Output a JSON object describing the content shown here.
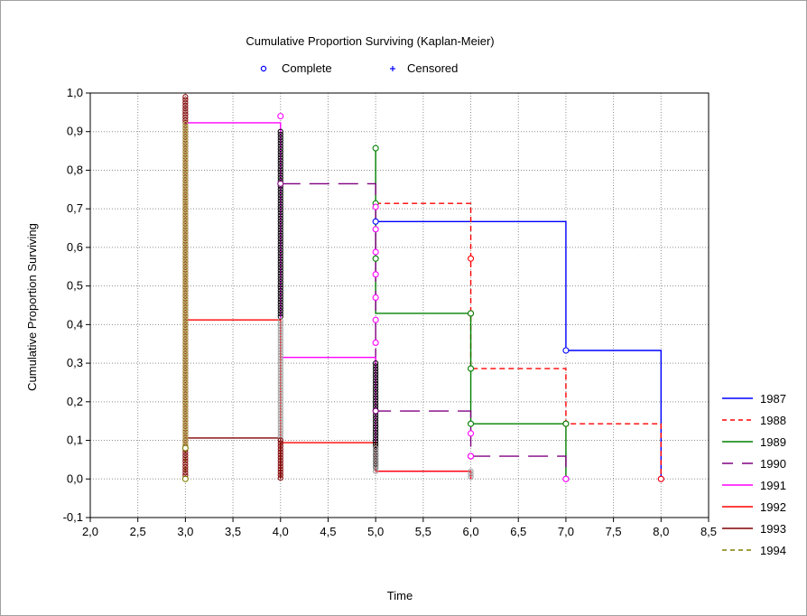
{
  "chart_data": {
    "type": "line",
    "title": "Cumulative Proportion Surviving (Kaplan-Meier)",
    "xlabel": "Time",
    "ylabel": "Cumulative Proportion Surviving",
    "xlim": [
      2.0,
      8.5
    ],
    "ylim": [
      -0.1,
      1.0
    ],
    "xticks": [
      "2,0",
      "2,5",
      "3,0",
      "3,5",
      "4,0",
      "4,5",
      "5,0",
      "5,5",
      "6,0",
      "6,5",
      "7,0",
      "7,5",
      "8,0",
      "8,5"
    ],
    "yticks": [
      "-0,1",
      "0,0",
      "0,1",
      "0,2",
      "0,3",
      "0,4",
      "0,5",
      "0,6",
      "0,7",
      "0,8",
      "0,9",
      "1,0"
    ],
    "grid": true,
    "legend_position": "right",
    "marker_legend": [
      {
        "label": "Complete",
        "symbol": "o",
        "color": "#0000ff"
      },
      {
        "label": "Censored",
        "symbol": "+",
        "color": "#0000ff"
      }
    ],
    "series": [
      {
        "name": "1987",
        "color": "#0000ff",
        "dash": "solid",
        "steps": [
          [
            5.0,
            0.667
          ],
          [
            7.0,
            0.333
          ],
          [
            8.0,
            0.0
          ]
        ],
        "points": [
          [
            5.0,
            0.667
          ],
          [
            7.0,
            0.333
          ],
          [
            8.0,
            0.0
          ]
        ]
      },
      {
        "name": "1988",
        "color": "#ff0000",
        "dash": "short",
        "steps": [
          [
            5.0,
            0.714
          ],
          [
            6.0,
            0.286
          ],
          [
            7.0,
            0.143
          ],
          [
            8.0,
            0.0
          ]
        ],
        "points": [
          [
            6.0,
            0.571
          ],
          [
            6.0,
            0.429
          ],
          [
            7.0,
            0.143
          ],
          [
            8.0,
            0.0
          ]
        ]
      },
      {
        "name": "1989",
        "color": "#008000",
        "dash": "solid",
        "steps": [
          [
            5.0,
            0.857
          ],
          [
            5.0,
            0.429
          ],
          [
            6.0,
            0.143
          ],
          [
            7.0,
            0.0
          ]
        ],
        "points": [
          [
            5.0,
            0.857
          ],
          [
            5.0,
            0.714
          ],
          [
            5.0,
            0.571
          ],
          [
            6.0,
            0.429
          ],
          [
            6.0,
            0.286
          ],
          [
            6.0,
            0.143
          ],
          [
            7.0,
            0.143
          ]
        ]
      },
      {
        "name": "1990",
        "color": "#800080",
        "dash": "long",
        "steps": [
          [
            4.0,
            0.765
          ],
          [
            5.0,
            0.176
          ],
          [
            6.0,
            0.059
          ],
          [
            7.0,
            0.0
          ]
        ],
        "points": [
          [
            4.0,
            0.765
          ],
          [
            5.0,
            0.176
          ],
          [
            6.0,
            0.059
          ],
          [
            7.0,
            0.0
          ]
        ]
      },
      {
        "name": "1991",
        "color": "#ff00ff",
        "dash": "solid",
        "steps": [
          [
            3.0,
            0.923
          ],
          [
            4.0,
            0.315
          ],
          [
            5.0,
            0.02
          ],
          [
            6.0,
            0.0
          ]
        ],
        "points": [
          [
            4.0,
            0.94
          ],
          [
            5.0,
            0.705
          ],
          [
            5.0,
            0.647
          ],
          [
            5.0,
            0.588
          ],
          [
            5.0,
            0.53
          ],
          [
            5.0,
            0.47
          ],
          [
            5.0,
            0.412
          ],
          [
            5.0,
            0.353
          ],
          [
            6.0,
            0.118
          ],
          [
            6.0,
            0.059
          ],
          [
            7.0,
            0.0
          ]
        ]
      },
      {
        "name": "1992",
        "color": "#ff0000",
        "dash": "solid",
        "steps": [
          [
            3.0,
            0.412
          ],
          [
            4.0,
            0.094
          ],
          [
            5.0,
            0.02
          ],
          [
            6.0,
            0.0
          ]
        ],
        "points": []
      },
      {
        "name": "1993",
        "color": "#800000",
        "dash": "solid",
        "steps": [
          [
            3.0,
            0.106
          ],
          [
            4.0,
            0.0
          ]
        ],
        "points": []
      },
      {
        "name": "1994",
        "color": "#808000",
        "dash": "short",
        "steps": [
          [
            3.0,
            0.08
          ],
          [
            3.0,
            0.0
          ]
        ],
        "points": [
          [
            3.0,
            0.08
          ],
          [
            3.0,
            0.0
          ]
        ]
      }
    ],
    "marker_columns": [
      {
        "x": 3.0,
        "from": 0.0,
        "to": 0.99,
        "color": "#800000"
      },
      {
        "x": 3.0,
        "from": 0.08,
        "to": 0.92,
        "color": "#b8b860"
      },
      {
        "x": 4.0,
        "from": 0.42,
        "to": 0.9,
        "color": "#000000"
      },
      {
        "x": 4.0,
        "from": 0.1,
        "to": 0.41,
        "color": "#a0a0a0"
      },
      {
        "x": 4.0,
        "from": 0.0,
        "to": 0.1,
        "color": "#800000"
      },
      {
        "x": 5.0,
        "from": 0.03,
        "to": 0.3,
        "color": "#000000"
      },
      {
        "x": 5.0,
        "from": 0.02,
        "to": 0.08,
        "color": "#a0a0a0"
      },
      {
        "x": 6.0,
        "from": 0.0,
        "to": 0.02,
        "color": "#a0a0a0"
      }
    ]
  }
}
